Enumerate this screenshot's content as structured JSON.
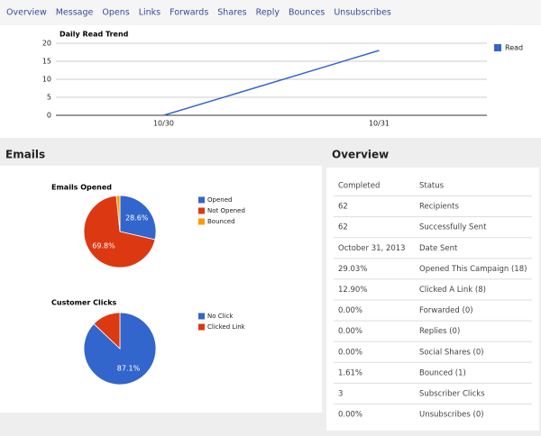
{
  "nav": {
    "items": [
      "Overview",
      "Message",
      "Opens",
      "Links",
      "Forwards",
      "Shares",
      "Reply",
      "Bounces",
      "Unsubscribes"
    ]
  },
  "chart_data": [
    {
      "type": "line",
      "title": "Daily Read Trend",
      "categories": [
        "10/30",
        "10/31"
      ],
      "series": [
        {
          "name": "Read",
          "color": "#3366cc",
          "values": [
            0,
            18
          ]
        }
      ],
      "ylim": [
        0,
        20
      ],
      "yticks": [
        0,
        5,
        10,
        15,
        20
      ],
      "grid": true,
      "legend": "right"
    },
    {
      "type": "pie",
      "title": "Emails Opened",
      "categories": [
        "Opened",
        "Not Opened",
        "Bounced"
      ],
      "values": [
        28.6,
        69.8,
        1.6
      ],
      "value_labels": [
        "28.6%",
        "69.8%",
        null
      ],
      "colors": [
        "#3366cc",
        "#dc3912",
        "#ff9900"
      ],
      "legend": "right"
    },
    {
      "type": "pie",
      "title": "Customer Clicks",
      "categories": [
        "No Click",
        "Clicked Link"
      ],
      "values": [
        87.1,
        12.9
      ],
      "value_labels": [
        "87.1%",
        null
      ],
      "colors": [
        "#3366cc",
        "#dc3912"
      ],
      "legend": "right"
    }
  ],
  "emails_panel": {
    "title": "Emails"
  },
  "overview": {
    "title": "Overview",
    "header": [
      "Completed",
      "Status"
    ],
    "rows": [
      [
        "62",
        "Recipients"
      ],
      [
        "62",
        "Successfully Sent"
      ],
      [
        "October 31, 2013",
        "Date Sent"
      ],
      [
        "29.03%",
        "Opened This Campaign (18)"
      ],
      [
        "12.90%",
        "Clicked A Link (8)"
      ],
      [
        "0.00%",
        "Forwarded (0)"
      ],
      [
        "0.00%",
        "Replies (0)"
      ],
      [
        "0.00%",
        "Social Shares (0)"
      ],
      [
        "1.61%",
        "Bounced (1)"
      ],
      [
        "3",
        "Subscriber Clicks"
      ],
      [
        "0.00%",
        "Unsubscribes (0)"
      ]
    ]
  }
}
